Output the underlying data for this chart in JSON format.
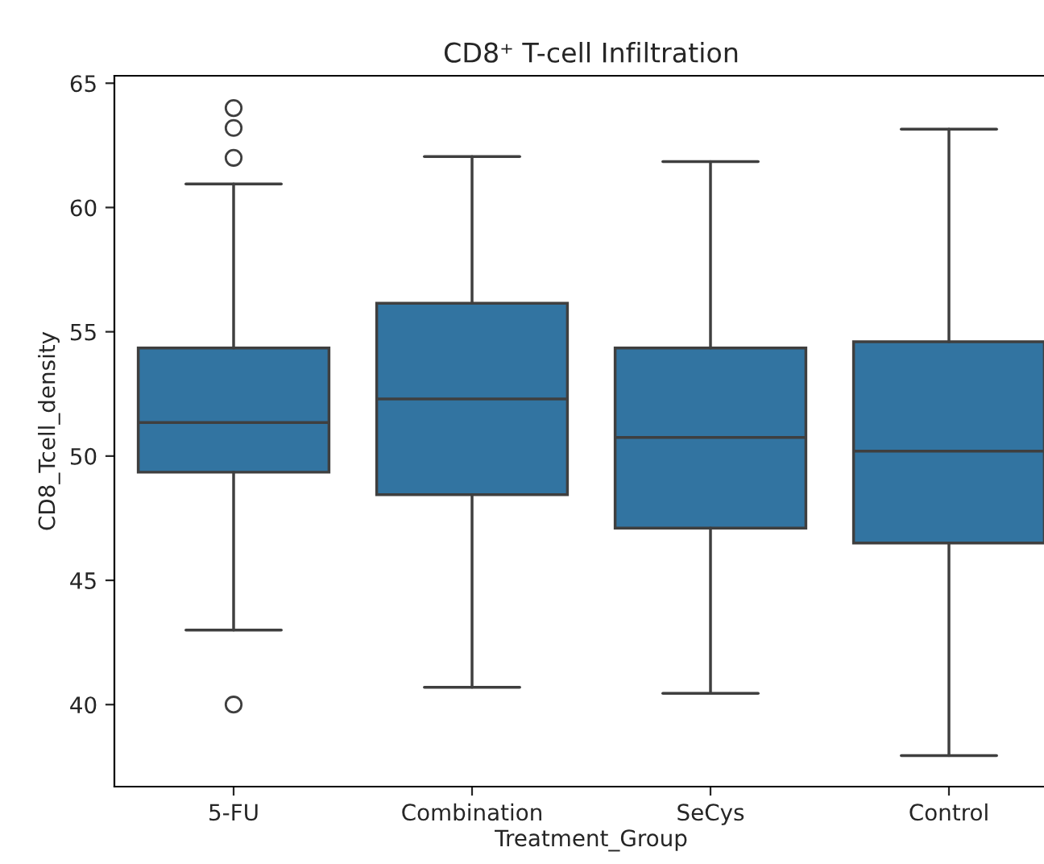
{
  "chart_data": {
    "type": "box",
    "title": "CD8⁺ T-cell Infiltration",
    "xlabel": "Treatment_Group",
    "ylabel": "CD8_Tcell_density",
    "categories": [
      "5-FU",
      "Combination",
      "SeCys",
      "Control"
    ],
    "boxes": [
      {
        "low": 43.0,
        "q1": 49.35,
        "median": 51.35,
        "q3": 54.35,
        "high": 60.95,
        "outliers": [
          64.0,
          63.2,
          62.0,
          40.0
        ]
      },
      {
        "low": 40.7,
        "q1": 48.45,
        "median": 52.3,
        "q3": 56.15,
        "high": 62.05
      },
      {
        "low": 40.45,
        "q1": 47.1,
        "median": 50.75,
        "q3": 54.35,
        "high": 61.85
      },
      {
        "low": 37.95,
        "q1": 46.5,
        "median": 50.2,
        "q3": 54.6,
        "high": 63.15
      }
    ],
    "color": "#3274a1",
    "ylim": [
      36.7,
      65.3
    ],
    "yticks": [
      40,
      45,
      50,
      55,
      60,
      65
    ],
    "grid": false,
    "legend": false
  }
}
